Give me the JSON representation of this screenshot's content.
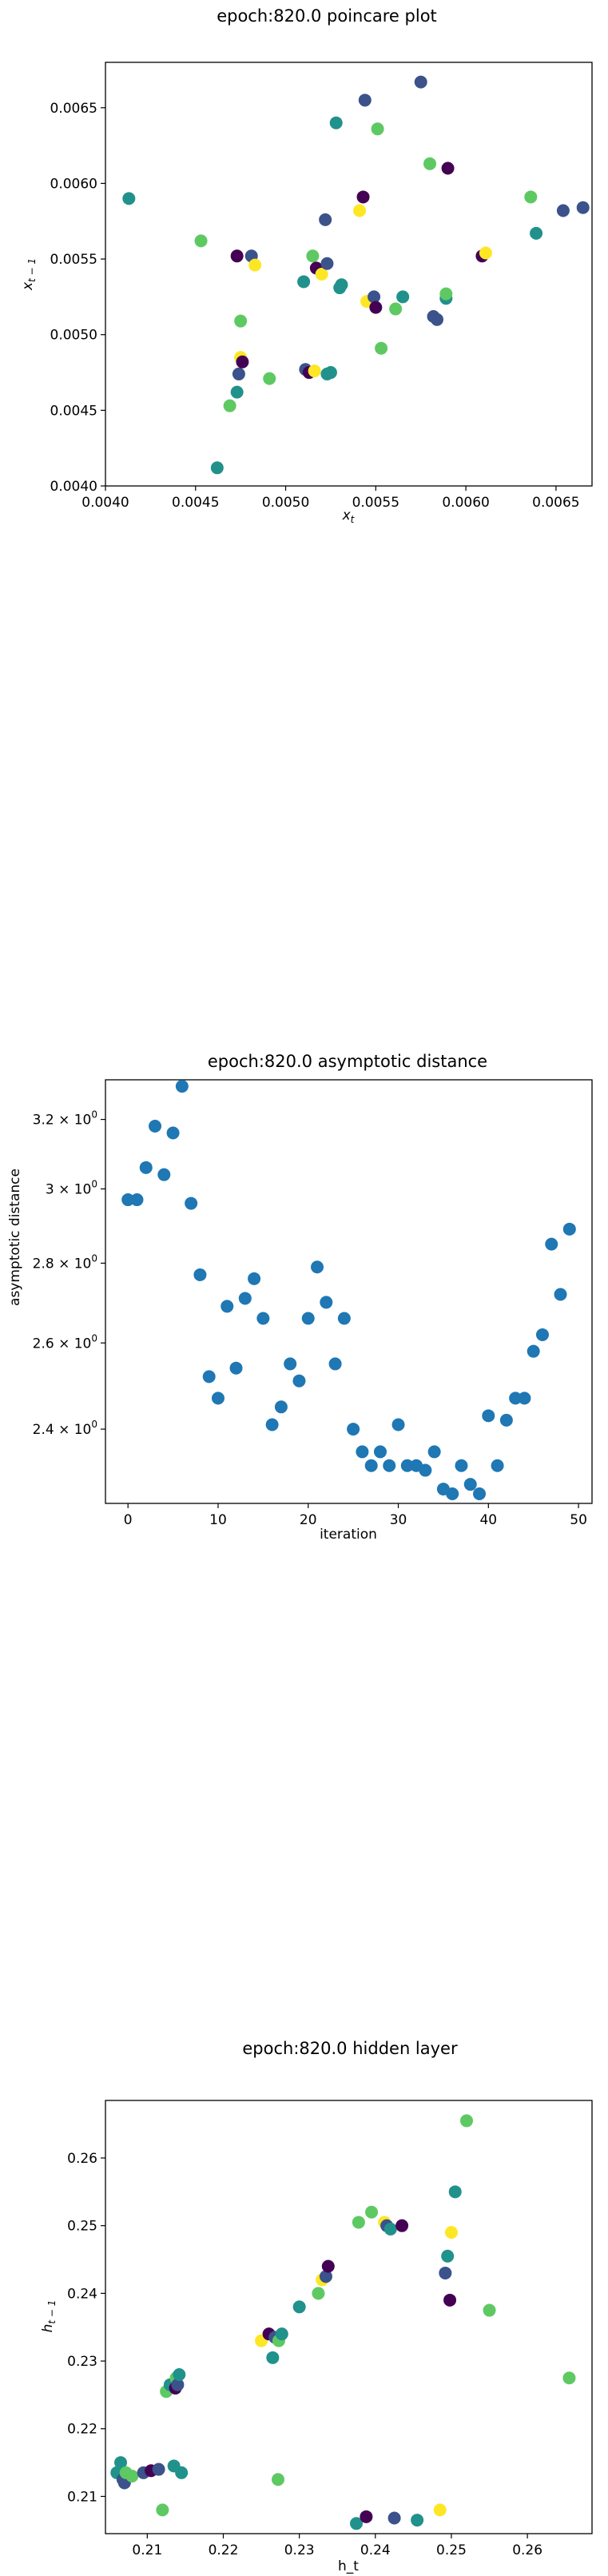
{
  "colors": {
    "viridis": [
      "#440154",
      "#3b528b",
      "#21918c",
      "#5ec962",
      "#fde725"
    ],
    "scatter_blue": "#1f77b4"
  },
  "chart_data": [
    {
      "id": "poincare",
      "type": "scatter",
      "title": "epoch:820.0 poincare plot",
      "xlabel": "x_t",
      "ylabel": "x_{t-1}",
      "xlim": [
        0.004,
        0.0067
      ],
      "ylim": [
        0.004,
        0.0068
      ],
      "xticks": [
        0.004,
        0.0045,
        0.005,
        0.0055,
        0.006,
        0.0065
      ],
      "xtick_labels": [
        "0.0040",
        "0.0045",
        "0.0050",
        "0.0055",
        "0.0060",
        "0.0065"
      ],
      "yticks": [
        0.004,
        0.0045,
        0.005,
        0.0055,
        0.006,
        0.0065
      ],
      "ytick_labels": [
        "0.0040",
        "0.0045",
        "0.0050",
        "0.0055",
        "0.0060",
        "0.0065"
      ],
      "colormap": "viridis",
      "points": [
        {
          "x": 0.00413,
          "y": 0.0059,
          "c": 0.4
        },
        {
          "x": 0.00453,
          "y": 0.00562,
          "c": 0.75
        },
        {
          "x": 0.00462,
          "y": 0.00412,
          "c": 0.4
        },
        {
          "x": 0.00469,
          "y": 0.00453,
          "c": 0.78
        },
        {
          "x": 0.00473,
          "y": 0.00552,
          "c": 0.05
        },
        {
          "x": 0.00473,
          "y": 0.00462,
          "c": 0.45
        },
        {
          "x": 0.00474,
          "y": 0.00474,
          "c": 0.2
        },
        {
          "x": 0.00475,
          "y": 0.00509,
          "c": 0.65
        },
        {
          "x": 0.00475,
          "y": 0.00485,
          "c": 0.98
        },
        {
          "x": 0.00476,
          "y": 0.00482,
          "c": 0.05
        },
        {
          "x": 0.00481,
          "y": 0.00552,
          "c": 0.3
        },
        {
          "x": 0.00483,
          "y": 0.00546,
          "c": 0.98
        },
        {
          "x": 0.00491,
          "y": 0.00471,
          "c": 0.8
        },
        {
          "x": 0.0051,
          "y": 0.00535,
          "c": 0.6
        },
        {
          "x": 0.00511,
          "y": 0.00477,
          "c": 0.3
        },
        {
          "x": 0.00513,
          "y": 0.00475,
          "c": 0.05
        },
        {
          "x": 0.00515,
          "y": 0.00552,
          "c": 0.72
        },
        {
          "x": 0.00516,
          "y": 0.00476,
          "c": 0.98
        },
        {
          "x": 0.00517,
          "y": 0.00544,
          "c": 0.05
        },
        {
          "x": 0.0052,
          "y": 0.0054,
          "c": 0.98
        },
        {
          "x": 0.00522,
          "y": 0.00576,
          "c": 0.35
        },
        {
          "x": 0.00523,
          "y": 0.00547,
          "c": 0.2
        },
        {
          "x": 0.00523,
          "y": 0.00474,
          "c": 0.55
        },
        {
          "x": 0.00525,
          "y": 0.00475,
          "c": 0.62
        },
        {
          "x": 0.00528,
          "y": 0.0064,
          "c": 0.5
        },
        {
          "x": 0.0053,
          "y": 0.00531,
          "c": 0.6
        },
        {
          "x": 0.00531,
          "y": 0.00533,
          "c": 0.55
        },
        {
          "x": 0.00541,
          "y": 0.00582,
          "c": 0.95
        },
        {
          "x": 0.00543,
          "y": 0.00591,
          "c": 0.05
        },
        {
          "x": 0.00544,
          "y": 0.00655,
          "c": 0.25
        },
        {
          "x": 0.00545,
          "y": 0.00522,
          "c": 0.98
        },
        {
          "x": 0.00549,
          "y": 0.00525,
          "c": 0.25
        },
        {
          "x": 0.0055,
          "y": 0.00518,
          "c": 0.1
        },
        {
          "x": 0.00551,
          "y": 0.00636,
          "c": 0.7
        },
        {
          "x": 0.00553,
          "y": 0.00491,
          "c": 0.8
        },
        {
          "x": 0.00561,
          "y": 0.00517,
          "c": 0.68
        },
        {
          "x": 0.00565,
          "y": 0.00525,
          "c": 0.5
        },
        {
          "x": 0.00575,
          "y": 0.00667,
          "c": 0.35
        },
        {
          "x": 0.0058,
          "y": 0.00613,
          "c": 0.85
        },
        {
          "x": 0.00582,
          "y": 0.00512,
          "c": 0.25
        },
        {
          "x": 0.00584,
          "y": 0.0051,
          "c": 0.3
        },
        {
          "x": 0.00589,
          "y": 0.00524,
          "c": 0.45
        },
        {
          "x": 0.00589,
          "y": 0.00527,
          "c": 0.68
        },
        {
          "x": 0.0059,
          "y": 0.0061,
          "c": 0.05
        },
        {
          "x": 0.00609,
          "y": 0.00552,
          "c": 0.05
        },
        {
          "x": 0.00611,
          "y": 0.00554,
          "c": 0.88
        },
        {
          "x": 0.00636,
          "y": 0.00591,
          "c": 0.7
        },
        {
          "x": 0.00639,
          "y": 0.00567,
          "c": 0.55
        },
        {
          "x": 0.00654,
          "y": 0.00582,
          "c": 0.25
        },
        {
          "x": 0.00665,
          "y": 0.00584,
          "c": 0.35
        }
      ]
    },
    {
      "id": "asymptotic",
      "type": "scatter",
      "title": "epoch:820.0 asymptotic distance",
      "xlabel": "iteration",
      "ylabel": "asymptotic distance",
      "xlim": [
        -2.5,
        51.5
      ],
      "ylim": [
        2.24,
        3.32
      ],
      "yscale": "log",
      "xticks": [
        0,
        10,
        20,
        30,
        40,
        50
      ],
      "xtick_labels": [
        "0",
        "10",
        "20",
        "30",
        "40",
        "50"
      ],
      "yticks": [
        2.4,
        2.6,
        2.8,
        3.0,
        3.2
      ],
      "ytick_labels": [
        {
          "base": "2.4 × 10",
          "exp": "0"
        },
        {
          "base": "2.6 × 10",
          "exp": "0"
        },
        {
          "base": "2.8 × 10",
          "exp": "0"
        },
        {
          "base": "3 × 10",
          "exp": "0"
        },
        {
          "base": "3.2 × 10",
          "exp": "0"
        }
      ],
      "x": [
        0,
        1,
        2,
        3,
        4,
        5,
        6,
        7,
        8,
        9,
        10,
        11,
        12,
        13,
        14,
        15,
        16,
        17,
        18,
        19,
        20,
        21,
        22,
        23,
        24,
        25,
        26,
        27,
        28,
        29,
        30,
        31,
        32,
        33,
        34,
        35,
        36,
        37,
        38,
        39,
        40,
        41,
        42,
        43,
        44,
        45,
        46,
        47,
        48,
        49
      ],
      "y": [
        2.97,
        2.97,
        3.06,
        3.18,
        3.04,
        3.16,
        3.3,
        2.96,
        2.77,
        2.52,
        2.47,
        2.69,
        2.54,
        2.71,
        2.76,
        2.66,
        2.41,
        2.45,
        2.55,
        2.51,
        2.66,
        2.79,
        2.7,
        2.55,
        2.66,
        2.4,
        2.35,
        2.32,
        2.35,
        2.32,
        2.41,
        2.32,
        2.32,
        2.31,
        2.35,
        2.27,
        2.26,
        2.32,
        2.28,
        2.26,
        2.43,
        2.32,
        2.42,
        2.47,
        2.47,
        2.58,
        2.62,
        2.85,
        2.72,
        2.89
      ]
    },
    {
      "id": "hidden",
      "type": "scatter",
      "title": "epoch:820.0 hidden layer",
      "xlabel": "h_t",
      "ylabel": "h_{t-1}",
      "xlim": [
        0.2045,
        0.2685
      ],
      "ylim": [
        0.2045,
        0.2685
      ],
      "xticks": [
        0.21,
        0.22,
        0.23,
        0.24,
        0.25,
        0.26
      ],
      "xtick_labels": [
        "0.21",
        "0.22",
        "0.23",
        "0.24",
        "0.25",
        "0.26"
      ],
      "yticks": [
        0.21,
        0.22,
        0.23,
        0.24,
        0.25,
        0.26
      ],
      "ytick_labels": [
        "0.21",
        "0.22",
        "0.23",
        "0.24",
        "0.25",
        "0.26"
      ],
      "colormap": "viridis",
      "points": [
        {
          "x": 0.206,
          "y": 0.2135,
          "c": 0.55
        },
        {
          "x": 0.2065,
          "y": 0.215,
          "c": 0.5
        },
        {
          "x": 0.2068,
          "y": 0.2125,
          "c": 0.25
        },
        {
          "x": 0.207,
          "y": 0.212,
          "c": 0.2
        },
        {
          "x": 0.2072,
          "y": 0.2135,
          "c": 0.65
        },
        {
          "x": 0.208,
          "y": 0.213,
          "c": 0.8
        },
        {
          "x": 0.2095,
          "y": 0.2135,
          "c": 0.35
        },
        {
          "x": 0.2105,
          "y": 0.2138,
          "c": 0.05
        },
        {
          "x": 0.2115,
          "y": 0.214,
          "c": 0.3
        },
        {
          "x": 0.212,
          "y": 0.208,
          "c": 0.8
        },
        {
          "x": 0.2125,
          "y": 0.2255,
          "c": 0.8
        },
        {
          "x": 0.213,
          "y": 0.2265,
          "c": 0.45
        },
        {
          "x": 0.2135,
          "y": 0.2145,
          "c": 0.6
        },
        {
          "x": 0.2137,
          "y": 0.226,
          "c": 0.05
        },
        {
          "x": 0.2138,
          "y": 0.2275,
          "c": 0.65
        },
        {
          "x": 0.214,
          "y": 0.2265,
          "c": 0.35
        },
        {
          "x": 0.2142,
          "y": 0.228,
          "c": 0.4
        },
        {
          "x": 0.2145,
          "y": 0.2135,
          "c": 0.5
        },
        {
          "x": 0.225,
          "y": 0.233,
          "c": 0.95
        },
        {
          "x": 0.226,
          "y": 0.234,
          "c": 0.05
        },
        {
          "x": 0.2265,
          "y": 0.2305,
          "c": 0.5
        },
        {
          "x": 0.2268,
          "y": 0.2335,
          "c": 0.2
        },
        {
          "x": 0.2272,
          "y": 0.2125,
          "c": 0.8
        },
        {
          "x": 0.2273,
          "y": 0.233,
          "c": 0.7
        },
        {
          "x": 0.2277,
          "y": 0.234,
          "c": 0.55
        },
        {
          "x": 0.23,
          "y": 0.238,
          "c": 0.5
        },
        {
          "x": 0.2325,
          "y": 0.24,
          "c": 0.65
        },
        {
          "x": 0.233,
          "y": 0.242,
          "c": 0.95
        },
        {
          "x": 0.2335,
          "y": 0.2425,
          "c": 0.35
        },
        {
          "x": 0.2338,
          "y": 0.244,
          "c": 0.05
        },
        {
          "x": 0.2375,
          "y": 0.206,
          "c": 0.55
        },
        {
          "x": 0.2378,
          "y": 0.2505,
          "c": 0.65
        },
        {
          "x": 0.2388,
          "y": 0.207,
          "c": 0.1
        },
        {
          "x": 0.2395,
          "y": 0.252,
          "c": 0.8
        },
        {
          "x": 0.2412,
          "y": 0.2505,
          "c": 0.98
        },
        {
          "x": 0.2415,
          "y": 0.25,
          "c": 0.15
        },
        {
          "x": 0.242,
          "y": 0.2495,
          "c": 0.4
        },
        {
          "x": 0.2425,
          "y": 0.2068,
          "c": 0.35
        },
        {
          "x": 0.2435,
          "y": 0.25,
          "c": 0.05
        },
        {
          "x": 0.2455,
          "y": 0.2065,
          "c": 0.45
        },
        {
          "x": 0.2485,
          "y": 0.208,
          "c": 0.98
        },
        {
          "x": 0.2492,
          "y": 0.243,
          "c": 0.25
        },
        {
          "x": 0.2495,
          "y": 0.2455,
          "c": 0.4
        },
        {
          "x": 0.2498,
          "y": 0.239,
          "c": 0.05
        },
        {
          "x": 0.25,
          "y": 0.249,
          "c": 0.98
        },
        {
          "x": 0.2505,
          "y": 0.255,
          "c": 0.55
        },
        {
          "x": 0.252,
          "y": 0.2655,
          "c": 0.75
        },
        {
          "x": 0.255,
          "y": 0.2375,
          "c": 0.65
        },
        {
          "x": 0.2655,
          "y": 0.2275,
          "c": 0.8
        }
      ]
    }
  ]
}
